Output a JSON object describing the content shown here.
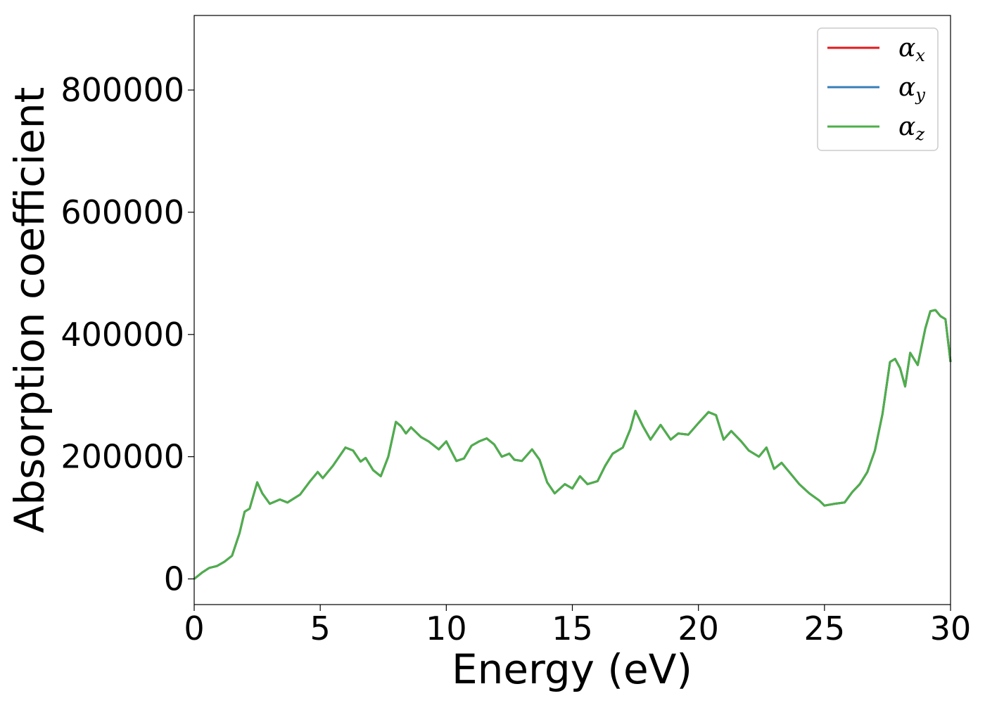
{
  "chart_data": {
    "type": "line",
    "xlabel": "Energy (eV)",
    "ylabel": "Absorption coefficient",
    "xlim": [
      0,
      30
    ],
    "ylim": [
      -42000,
      922000
    ],
    "xticks": [
      0,
      5,
      10,
      15,
      20,
      25,
      30
    ],
    "yticks": [
      0,
      200000,
      400000,
      600000,
      800000
    ],
    "grid": false,
    "legend_position": "top-right",
    "legend": [
      {
        "base": "α",
        "sub": "x",
        "color": "#e41a1c"
      },
      {
        "base": "α",
        "sub": "y",
        "color": "#377eb8"
      },
      {
        "base": "α",
        "sub": "z",
        "color": "#4daf4a"
      }
    ],
    "x": [
      0,
      0.3,
      0.6,
      0.9,
      1.2,
      1.5,
      1.8,
      2.0,
      2.2,
      2.5,
      2.7,
      3.0,
      3.4,
      3.7,
      4.2,
      4.6,
      4.9,
      5.1,
      5.5,
      6.0,
      6.3,
      6.6,
      6.8,
      7.1,
      7.4,
      7.7,
      8.0,
      8.2,
      8.4,
      8.6,
      9.0,
      9.3,
      9.7,
      10.0,
      10.4,
      10.7,
      11.0,
      11.3,
      11.6,
      11.9,
      12.2,
      12.5,
      12.7,
      13.0,
      13.4,
      13.7,
      14.0,
      14.3,
      14.7,
      15.0,
      15.3,
      15.6,
      16.0,
      16.3,
      16.6,
      17.0,
      17.3,
      17.5,
      17.8,
      18.1,
      18.5,
      18.9,
      19.2,
      19.6,
      20.0,
      20.4,
      20.7,
      21.0,
      21.3,
      21.7,
      22.0,
      22.4,
      22.7,
      23.0,
      23.3,
      23.7,
      24.0,
      24.4,
      24.8,
      25.0,
      25.4,
      25.8,
      26.1,
      26.4,
      26.7,
      27.0,
      27.3,
      27.6,
      27.8,
      28.0,
      28.2,
      28.4,
      28.7,
      29.0,
      29.2,
      29.4,
      29.6,
      29.8,
      30.0
    ],
    "series": [
      {
        "name": "α_x",
        "color": "#e41a1c",
        "values": [
          0,
          10000,
          18000,
          21000,
          28000,
          38000,
          75000,
          110000,
          115000,
          158000,
          140000,
          123000,
          130000,
          125000,
          138000,
          160000,
          175000,
          165000,
          185000,
          215000,
          210000,
          192000,
          198000,
          178000,
          168000,
          200000,
          257000,
          250000,
          238000,
          248000,
          232000,
          225000,
          212000,
          225000,
          193000,
          197000,
          218000,
          225000,
          230000,
          220000,
          200000,
          205000,
          195000,
          193000,
          212000,
          195000,
          158000,
          140000,
          155000,
          148000,
          168000,
          155000,
          160000,
          185000,
          205000,
          215000,
          245000,
          275000,
          250000,
          228000,
          252000,
          228000,
          238000,
          236000,
          255000,
          273000,
          268000,
          228000,
          242000,
          225000,
          210000,
          200000,
          215000,
          180000,
          190000,
          170000,
          155000,
          140000,
          128000,
          120000,
          123000,
          125000,
          142000,
          155000,
          175000,
          210000,
          270000,
          355000,
          360000,
          345000,
          315000,
          370000,
          350000,
          410000,
          438000,
          440000,
          430000,
          425000,
          355000
        ]
      },
      {
        "name": "α_y",
        "color": "#377eb8",
        "values": [
          0,
          10000,
          18000,
          21000,
          28000,
          38000,
          75000,
          110000,
          115000,
          158000,
          140000,
          123000,
          130000,
          125000,
          138000,
          160000,
          175000,
          165000,
          185000,
          215000,
          210000,
          192000,
          198000,
          178000,
          168000,
          200000,
          257000,
          250000,
          238000,
          248000,
          232000,
          225000,
          212000,
          225000,
          193000,
          197000,
          218000,
          225000,
          230000,
          220000,
          200000,
          205000,
          195000,
          193000,
          212000,
          195000,
          158000,
          140000,
          155000,
          148000,
          168000,
          155000,
          160000,
          185000,
          205000,
          215000,
          245000,
          275000,
          250000,
          228000,
          252000,
          228000,
          238000,
          236000,
          255000,
          273000,
          268000,
          228000,
          242000,
          225000,
          210000,
          200000,
          215000,
          180000,
          190000,
          170000,
          155000,
          140000,
          128000,
          120000,
          123000,
          125000,
          142000,
          155000,
          175000,
          210000,
          270000,
          355000,
          360000,
          345000,
          315000,
          370000,
          350000,
          410000,
          438000,
          440000,
          430000,
          425000,
          355000
        ]
      },
      {
        "name": "α_z",
        "color": "#4daf4a",
        "values": [
          0,
          10000,
          18000,
          21000,
          28000,
          38000,
          75000,
          110000,
          115000,
          158000,
          140000,
          123000,
          130000,
          125000,
          138000,
          160000,
          175000,
          165000,
          185000,
          215000,
          210000,
          192000,
          198000,
          178000,
          168000,
          200000,
          257000,
          250000,
          238000,
          248000,
          232000,
          225000,
          212000,
          225000,
          193000,
          197000,
          218000,
          225000,
          230000,
          220000,
          200000,
          205000,
          195000,
          193000,
          212000,
          195000,
          158000,
          140000,
          155000,
          148000,
          168000,
          155000,
          160000,
          185000,
          205000,
          215000,
          245000,
          275000,
          250000,
          228000,
          252000,
          228000,
          238000,
          236000,
          255000,
          273000,
          268000,
          228000,
          242000,
          225000,
          210000,
          200000,
          215000,
          180000,
          190000,
          170000,
          155000,
          140000,
          128000,
          120000,
          123000,
          125000,
          142000,
          155000,
          175000,
          210000,
          270000,
          355000,
          360000,
          345000,
          315000,
          370000,
          350000,
          410000,
          438000,
          440000,
          430000,
          425000,
          355000
        ]
      }
    ]
  }
}
